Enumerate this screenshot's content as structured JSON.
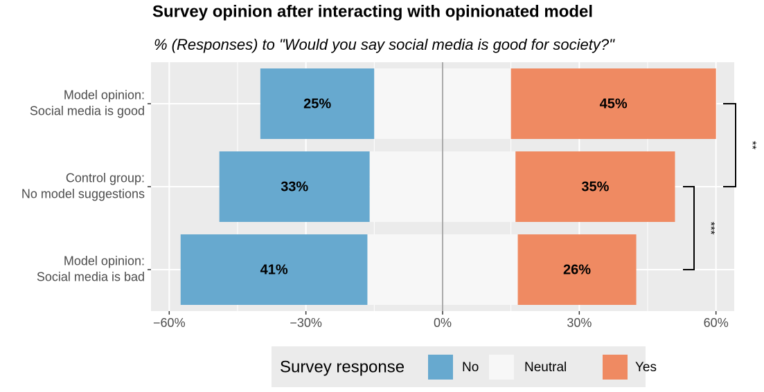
{
  "chart_data": {
    "type": "diverging_bar",
    "title": "Survey opinion after interacting with opinionated model",
    "subtitle": "% (Responses) to \"Would you say social media is good for society?\"",
    "categories": [
      [
        "Model opinion:",
        "Social media is good"
      ],
      [
        "Control group:",
        "No model suggestions"
      ],
      [
        "Model opinion:",
        "Social media is bad"
      ]
    ],
    "series": [
      {
        "name": "No",
        "color": "#67a9cf",
        "values": [
          25,
          33,
          41
        ],
        "value_labels": [
          "25%",
          "33%",
          "41%"
        ]
      },
      {
        "name": "Neutral",
        "color": "#f7f7f7",
        "values": [
          30,
          32,
          33
        ]
      },
      {
        "name": "Yes",
        "color": "#ef8a62",
        "values": [
          45,
          35,
          26
        ],
        "value_labels": [
          "45%",
          "35%",
          "26%"
        ]
      }
    ],
    "xlim": [
      -64,
      64
    ],
    "xticks": [
      {
        "value": -60,
        "label": "−60%"
      },
      {
        "value": -30,
        "label": "−30%"
      },
      {
        "value": 0,
        "label": "0%"
      },
      {
        "value": 30,
        "label": "30%"
      },
      {
        "value": 60,
        "label": "60%"
      }
    ],
    "grid": true,
    "legend_title": "Survey response",
    "legend": "bottom",
    "annotations": [
      "**",
      "***"
    ]
  }
}
